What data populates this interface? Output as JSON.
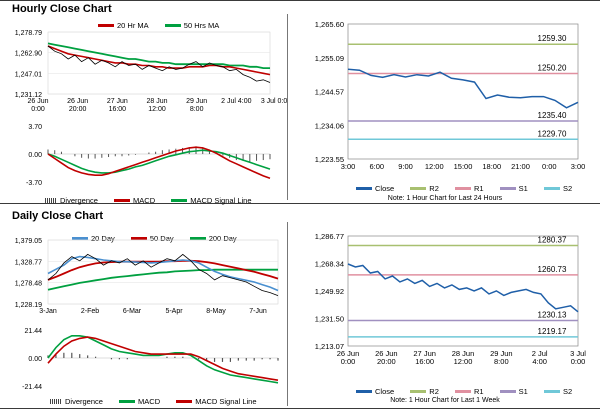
{
  "sections": {
    "hourly_title": "Hourly Close Chart",
    "daily_title": "Daily Close Chart"
  },
  "colors": {
    "ma_short": "#c00000",
    "ma_long": "#00a040",
    "price": "#000000",
    "close_line": "#1f5fa8",
    "r2": "#a8c070",
    "r1": "#e090a0",
    "s1": "#a090c0",
    "s2": "#70c8d8",
    "ma_20day": "#4a90d0",
    "divergence": "#555555"
  },
  "hourly_legend": [
    "20 Hr MA",
    "50 Hrs MA"
  ],
  "hourly_macd_legend": [
    "Divergence",
    "MACD",
    "MACD Signal Line"
  ],
  "daily_legend": [
    "20 Day",
    "50 Day",
    "200 Day"
  ],
  "daily_macd_legend": [
    "Divergence",
    "MACD",
    "MACD Signal Line"
  ],
  "pivot_legend": [
    "Close",
    "R2",
    "R1",
    "S1",
    "S2"
  ],
  "notes": {
    "top": "Note: 1 Hour Chart for Last 24 Hours",
    "bottom": "Note: 1 Hour Chart for Last 1 Week"
  },
  "chart_data": [
    {
      "type": "line",
      "name": "hourly_price",
      "title": "Hourly Close Chart",
      "yticks": [
        "1,278.79",
        "1,262.90",
        "1,247.01",
        "1,231.12"
      ],
      "ylim": [
        1231.12,
        1278.79
      ],
      "xticks": [
        "26 Jun\n0:00",
        "26 Jun\n20:00",
        "27 Jun\n16:00",
        "28 Jun\n12:00",
        "29 Jun\n8:00",
        "2 Jul 4:00",
        "3 Jul 0:00"
      ],
      "series": [
        {
          "name": "Close",
          "values": [
            1268,
            1264,
            1262,
            1258,
            1261,
            1256,
            1259,
            1254,
            1257,
            1255,
            1252,
            1256,
            1253,
            1254,
            1250,
            1253,
            1251,
            1249,
            1252,
            1250,
            1251,
            1254,
            1256,
            1252,
            1255,
            1253,
            1252,
            1249,
            1250,
            1246,
            1244,
            1241,
            1242,
            1240
          ]
        },
        {
          "name": "20 Hr MA",
          "values": [
            1268,
            1266,
            1264,
            1262,
            1261,
            1260,
            1259,
            1258,
            1257,
            1256,
            1255,
            1255,
            1254,
            1254,
            1253,
            1253,
            1252,
            1252,
            1251,
            1251,
            1251,
            1252,
            1252,
            1252,
            1253,
            1253,
            1252,
            1252,
            1251,
            1250,
            1249,
            1248,
            1247,
            1246
          ]
        },
        {
          "name": "50 Hrs MA",
          "values": [
            1270,
            1269,
            1268,
            1267,
            1266,
            1265,
            1264,
            1263,
            1262,
            1261,
            1260,
            1259,
            1258,
            1258,
            1257,
            1256,
            1256,
            1255,
            1255,
            1254,
            1254,
            1254,
            1254,
            1254,
            1254,
            1254,
            1254,
            1253,
            1253,
            1253,
            1252,
            1252,
            1251,
            1251
          ]
        }
      ]
    },
    {
      "type": "line",
      "name": "hourly_macd",
      "yticks": [
        "3.70",
        "0.00",
        "-3.70"
      ],
      "ylim": [
        -3.7,
        3.7
      ],
      "series": [
        {
          "name": "Divergence",
          "values": [
            0.6,
            0.5,
            0.3,
            0.0,
            -0.3,
            -0.5,
            -0.6,
            -0.6,
            -0.5,
            -0.4,
            -0.3,
            -0.3,
            -0.2,
            -0.1,
            0.0,
            0.2,
            0.3,
            0.5,
            0.6,
            0.7,
            0.8,
            0.9,
            1.0,
            0.9,
            0.6,
            0.2,
            -0.2,
            -0.5,
            -0.8,
            -0.9,
            -1.0,
            -0.9,
            -0.8,
            -0.7
          ]
        },
        {
          "name": "MACD",
          "values": [
            0.0,
            -0.6,
            -1.2,
            -1.8,
            -2.2,
            -2.5,
            -2.7,
            -2.8,
            -2.8,
            -2.6,
            -2.3,
            -2.0,
            -1.7,
            -1.4,
            -1.1,
            -0.8,
            -0.5,
            -0.2,
            0.1,
            0.4,
            0.6,
            0.8,
            0.9,
            0.8,
            0.5,
            0.1,
            -0.4,
            -0.9,
            -1.3,
            -1.7,
            -2.1,
            -2.5,
            -2.9,
            -3.2
          ]
        },
        {
          "name": "MACD Signal Line",
          "values": [
            0.0,
            -0.3,
            -0.7,
            -1.1,
            -1.5,
            -1.9,
            -2.2,
            -2.4,
            -2.5,
            -2.5,
            -2.4,
            -2.2,
            -2.0,
            -1.7,
            -1.5,
            -1.2,
            -0.9,
            -0.6,
            -0.3,
            -0.1,
            0.1,
            0.3,
            0.4,
            0.5,
            0.4,
            0.3,
            0.1,
            -0.2,
            -0.5,
            -0.8,
            -1.1,
            -1.4,
            -1.7,
            -2.0
          ]
        }
      ]
    },
    {
      "type": "line",
      "name": "pivot_top",
      "yticks": [
        "1,265.60",
        "1,255.09",
        "1,244.57",
        "1,234.06",
        "1,223.55"
      ],
      "ylim": [
        1223.55,
        1265.6
      ],
      "xticks": [
        "3:00",
        "6:00",
        "9:00",
        "12:00",
        "15:00",
        "18:00",
        "21:00",
        "0:00",
        "3:00"
      ],
      "levels": [
        {
          "name": "R2",
          "value": 1259.3,
          "label": "1259.30"
        },
        {
          "name": "R1",
          "value": 1250.2,
          "label": "1250.20"
        },
        {
          "name": "S1",
          "value": 1235.4,
          "label": "1235.40"
        },
        {
          "name": "S2",
          "value": 1229.7,
          "label": "1229.70"
        }
      ],
      "series": [
        {
          "name": "Close",
          "values": [
            1251.5,
            1251.2,
            1249.6,
            1249.0,
            1249.8,
            1249.1,
            1249.8,
            1249.4,
            1250.6,
            1248.7,
            1248.2,
            1247.5,
            1242.4,
            1243.5,
            1242.8,
            1242.6,
            1243.0,
            1243.0,
            1241.8,
            1239.5,
            1241.2
          ]
        }
      ]
    },
    {
      "type": "line",
      "name": "daily_price",
      "title": "Daily Close Chart",
      "yticks": [
        "1,379.05",
        "1,328.77",
        "1,278.48",
        "1,228.19"
      ],
      "ylim": [
        1228.19,
        1379.05
      ],
      "xticks": [
        "3-Jan",
        "2-Feb",
        "6-Mar",
        "5-Apr",
        "8-May",
        "7-Jun"
      ],
      "series": [
        {
          "name": "Close",
          "values": [
            1285,
            1300,
            1325,
            1340,
            1330,
            1345,
            1335,
            1320,
            1330,
            1325,
            1335,
            1320,
            1330,
            1315,
            1325,
            1335,
            1330,
            1345,
            1330,
            1310,
            1300,
            1285,
            1295,
            1290,
            1285,
            1280,
            1270,
            1260,
            1255,
            1248
          ]
        },
        {
          "name": "20 Day",
          "values": [
            1300,
            1310,
            1320,
            1335,
            1340,
            1338,
            1335,
            1332,
            1330,
            1328,
            1328,
            1327,
            1326,
            1325,
            1326,
            1328,
            1330,
            1332,
            1330,
            1325,
            1315,
            1305,
            1298,
            1292,
            1288,
            1284,
            1280,
            1274,
            1268,
            1260
          ]
        },
        {
          "name": "50 Day",
          "values": [
            1285,
            1292,
            1300,
            1308,
            1315,
            1320,
            1324,
            1326,
            1327,
            1328,
            1328,
            1328,
            1328,
            1328,
            1328,
            1329,
            1329,
            1330,
            1330,
            1329,
            1327,
            1324,
            1320,
            1316,
            1312,
            1308,
            1304,
            1299,
            1294,
            1288
          ]
        },
        {
          "name": "200 Day",
          "values": [
            1262,
            1266,
            1270,
            1274,
            1278,
            1281,
            1284,
            1287,
            1290,
            1292,
            1294,
            1296,
            1298,
            1300,
            1302,
            1303,
            1305,
            1306,
            1307,
            1308,
            1308,
            1309,
            1309,
            1309,
            1309,
            1309,
            1309,
            1309,
            1309,
            1309
          ]
        }
      ]
    },
    {
      "type": "line",
      "name": "daily_macd",
      "yticks": [
        "21.44",
        "0.00",
        "-21.44"
      ],
      "ylim": [
        -21.44,
        21.44
      ],
      "series": [
        {
          "name": "Divergence",
          "values": [
            2,
            3,
            4,
            4,
            3,
            2,
            1,
            0,
            -1,
            -1,
            -1,
            0,
            0,
            0,
            0,
            1,
            1,
            1,
            0,
            -1,
            -2,
            -3,
            -3,
            -3,
            -2,
            -2,
            -2,
            -1,
            -1,
            -2
          ]
        },
        {
          "name": "MACD",
          "values": [
            0,
            8,
            14,
            17,
            17,
            16,
            13,
            10,
            7,
            5,
            4,
            3,
            2,
            2,
            2,
            3,
            4,
            4,
            2,
            -2,
            -6,
            -9,
            -11,
            -13,
            -14,
            -15,
            -16,
            -17,
            -18,
            -19
          ]
        },
        {
          "name": "MACD Signal Line",
          "values": [
            -4,
            3,
            9,
            13,
            15,
            16,
            15,
            13,
            11,
            9,
            7,
            5,
            4,
            3,
            3,
            3,
            3,
            3,
            3,
            1,
            -2,
            -5,
            -8,
            -10,
            -12,
            -13,
            -14,
            -15,
            -16,
            -17
          ]
        }
      ]
    },
    {
      "type": "line",
      "name": "pivot_bottom",
      "yticks": [
        "1,286.77",
        "1,268.34",
        "1,249.92",
        "1,231.50",
        "1,213.07"
      ],
      "ylim": [
        1213.07,
        1286.77
      ],
      "xticks": [
        "26 Jun\n0:00",
        "26 Jun\n20:00",
        "27 Jun\n16:00",
        "28 Jun\n12:00",
        "29 Jun\n8:00",
        "2 Jul\n4:00",
        "3 Jul\n0:00"
      ],
      "levels": [
        {
          "name": "R2",
          "value": 1280.37,
          "label": "1280.37"
        },
        {
          "name": "R1",
          "value": 1260.73,
          "label": "1260.73"
        },
        {
          "name": "S1",
          "value": 1230.13,
          "label": "1230.13"
        },
        {
          "name": "S2",
          "value": 1219.17,
          "label": "1219.17"
        }
      ],
      "series": [
        {
          "name": "Close",
          "values": [
            1268,
            1266,
            1267,
            1262,
            1263,
            1258,
            1260,
            1256,
            1258,
            1255,
            1257,
            1253,
            1255,
            1252,
            1254,
            1251,
            1252,
            1250,
            1252,
            1248,
            1250,
            1247,
            1249,
            1250,
            1251,
            1249,
            1248,
            1242,
            1238,
            1239,
            1240,
            1236
          ]
        }
      ]
    }
  ]
}
